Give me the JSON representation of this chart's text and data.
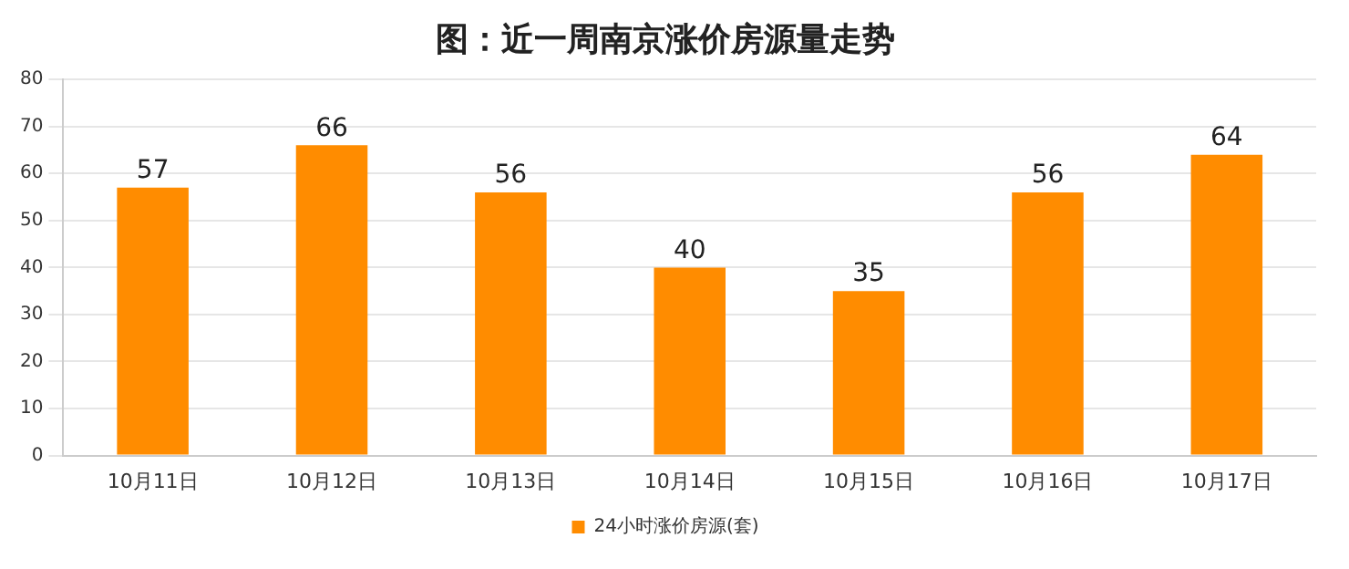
{
  "chart_data": {
    "type": "bar",
    "title": "图：近一周南京涨价房源量走势",
    "categories": [
      "10月11日",
      "10月12日",
      "10月13日",
      "10月14日",
      "10月15日",
      "10月16日",
      "10月17日"
    ],
    "series": [
      {
        "name": "24小时涨价房源(套)",
        "color": "#ff8c00",
        "values": [
          57,
          66,
          56,
          40,
          35,
          56,
          64
        ]
      }
    ],
    "ylim": [
      0,
      80
    ],
    "yticks": [
      0,
      10,
      20,
      30,
      40,
      50,
      60,
      70,
      80
    ],
    "grid": "y",
    "legend": "bottom",
    "data_labels": true
  }
}
